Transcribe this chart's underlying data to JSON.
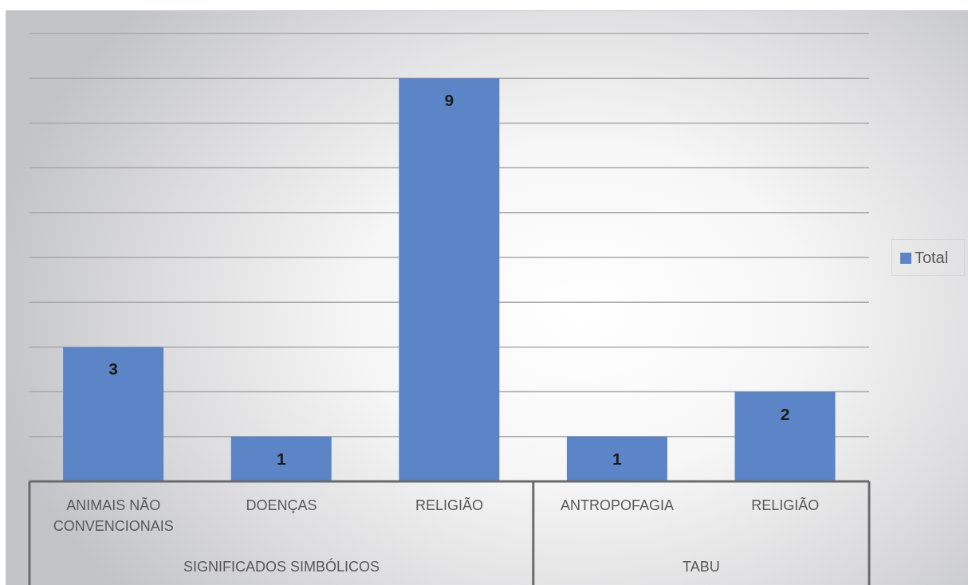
{
  "chart_data": {
    "type": "bar",
    "categories": [
      "ANIMAIS NÃO CONVENCIONAIS",
      "DOENÇAS",
      "RELIGIÃO",
      "ANTROPOFAGIA",
      "RELIGIÃO"
    ],
    "series": [
      {
        "name": "Total",
        "color": "#5b85c6",
        "values": [
          3,
          1,
          9,
          1,
          2
        ]
      }
    ],
    "annotations": [
      "SIGNIFICADOS SIMBÓLICOS",
      "TABU"
    ],
    "ylim": [
      0,
      10
    ],
    "tick_labels": "x",
    "grid": "y",
    "legend": "right",
    "data_labels": true
  }
}
